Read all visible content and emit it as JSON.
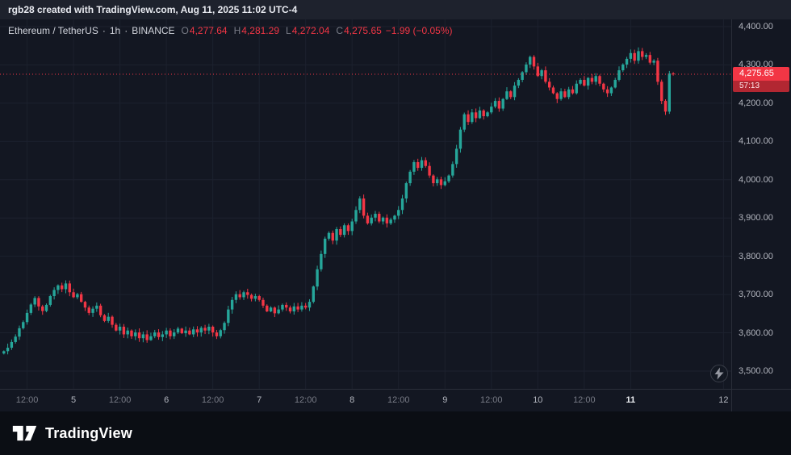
{
  "topbar": {
    "attribution": "rgb28 created with TradingView.com, Aug 11, 2025 11:02 UTC-4"
  },
  "legend": {
    "symbol": "Ethereum / TetherUS",
    "separator": "·",
    "interval": "1h",
    "exchange": "BINANCE",
    "o_label": "O",
    "o": "4,277.64",
    "h_label": "H",
    "h": "4,281.29",
    "l_label": "L",
    "l": "4,272.04",
    "c_label": "C",
    "c": "4,275.65",
    "change": "−1.99 (−0.05%)"
  },
  "price_scale": {
    "last_price": "4,275.65",
    "countdown": "57:13"
  },
  "footer": {
    "brand": "TradingView"
  },
  "colors": {
    "up": "#26a69a",
    "down": "#f23645",
    "grid": "#1c212e",
    "accent_red": "#f23645",
    "bg": "#131722"
  },
  "chart_data": {
    "type": "candlestick",
    "title": "Ethereum / TetherUS · 1h · BINANCE",
    "interval_per_candle": "1 hour",
    "ylim": [
      3453,
      4419
    ],
    "grid": true,
    "price_gridlines": [
      3500,
      3600,
      3700,
      3800,
      3900,
      4000,
      4100,
      4200,
      4300,
      4400
    ],
    "price_ticks": [
      {
        "label": "4,400.00",
        "value": 4400
      },
      {
        "label": "4,300.00",
        "value": 4300
      },
      {
        "label": "4,200.00",
        "value": 4200
      },
      {
        "label": "4,100.00",
        "value": 4100
      },
      {
        "label": "4,000.00",
        "value": 4000
      },
      {
        "label": "3,900.00",
        "value": 3900
      },
      {
        "label": "3,800.00",
        "value": 3800
      },
      {
        "label": "3,700.00",
        "value": 3700
      },
      {
        "label": "3,600.00",
        "value": 3600
      },
      {
        "label": "3,500.00",
        "value": 3500
      }
    ],
    "time_ticks": [
      {
        "label": "12:00",
        "hour": 6,
        "kind": "hour"
      },
      {
        "label": "5",
        "hour": 18,
        "kind": "day"
      },
      {
        "label": "12:00",
        "hour": 30,
        "kind": "hour"
      },
      {
        "label": "6",
        "hour": 42,
        "kind": "day"
      },
      {
        "label": "12:00",
        "hour": 54,
        "kind": "hour"
      },
      {
        "label": "7",
        "hour": 66,
        "kind": "day"
      },
      {
        "label": "12:00",
        "hour": 78,
        "kind": "hour"
      },
      {
        "label": "8",
        "hour": 90,
        "kind": "day"
      },
      {
        "label": "12:00",
        "hour": 102,
        "kind": "hour"
      },
      {
        "label": "9",
        "hour": 114,
        "kind": "day"
      },
      {
        "label": "12:00",
        "hour": 126,
        "kind": "hour"
      },
      {
        "label": "10",
        "hour": 138,
        "kind": "day"
      },
      {
        "label": "12:00",
        "hour": 150,
        "kind": "hour"
      },
      {
        "label": "11",
        "hour": 162,
        "kind": "current"
      },
      {
        "label": "12",
        "hour": 186,
        "kind": "day"
      }
    ],
    "slots_total": 189,
    "current_price": 4275.65,
    "last_candle": {
      "open": 4277.64,
      "high": 4281.29,
      "low": 4272.04,
      "close": 4275.65,
      "change": -1.99,
      "change_pct": -0.05
    },
    "first_open": 3546,
    "hourly_closes": [
      3552,
      3561,
      3576,
      3590,
      3612,
      3628,
      3652,
      3674,
      3691,
      3669,
      3657,
      3673,
      3696,
      3712,
      3724,
      3714,
      3729,
      3706,
      3693,
      3701,
      3681,
      3666,
      3652,
      3663,
      3671,
      3646,
      3631,
      3642,
      3621,
      3606,
      3616,
      3596,
      3606,
      3591,
      3601,
      3586,
      3596,
      3581,
      3591,
      3601,
      3589,
      3596,
      3606,
      3591,
      3601,
      3611,
      3599,
      3606,
      3596,
      3609,
      3601,
      3613,
      3606,
      3616,
      3601,
      3591,
      3607,
      3626,
      3661,
      3686,
      3701,
      3693,
      3706,
      3699,
      3689,
      3696,
      3686,
      3671,
      3656,
      3666,
      3651,
      3661,
      3673,
      3666,
      3656,
      3669,
      3661,
      3671,
      3666,
      3681,
      3721,
      3766,
      3806,
      3846,
      3861,
      3841,
      3871,
      3856,
      3881,
      3866,
      3891,
      3921,
      3951,
      3906,
      3886,
      3901,
      3911,
      3891,
      3901,
      3886,
      3896,
      3906,
      3921,
      3951,
      3991,
      4021,
      4046,
      4031,
      4051,
      4036,
      4011,
      3991,
      4001,
      3986,
      3996,
      4011,
      4041,
      4081,
      4131,
      4171,
      4151,
      4176,
      4161,
      4181,
      4166,
      4176,
      4191,
      4206,
      4186,
      4211,
      4231,
      4216,
      4246,
      4261,
      4281,
      4301,
      4321,
      4296,
      4271,
      4286,
      4256,
      4241,
      4226,
      4211,
      4231,
      4216,
      4236,
      4226,
      4251,
      4261,
      4246,
      4266,
      4256,
      4271,
      4251,
      4236,
      4226,
      4241,
      4261,
      4286,
      4301,
      4316,
      4331,
      4311,
      4336,
      4321,
      4326,
      4306,
      4311,
      4256,
      4206,
      4178,
      4277.64,
      4275.65
    ]
  }
}
